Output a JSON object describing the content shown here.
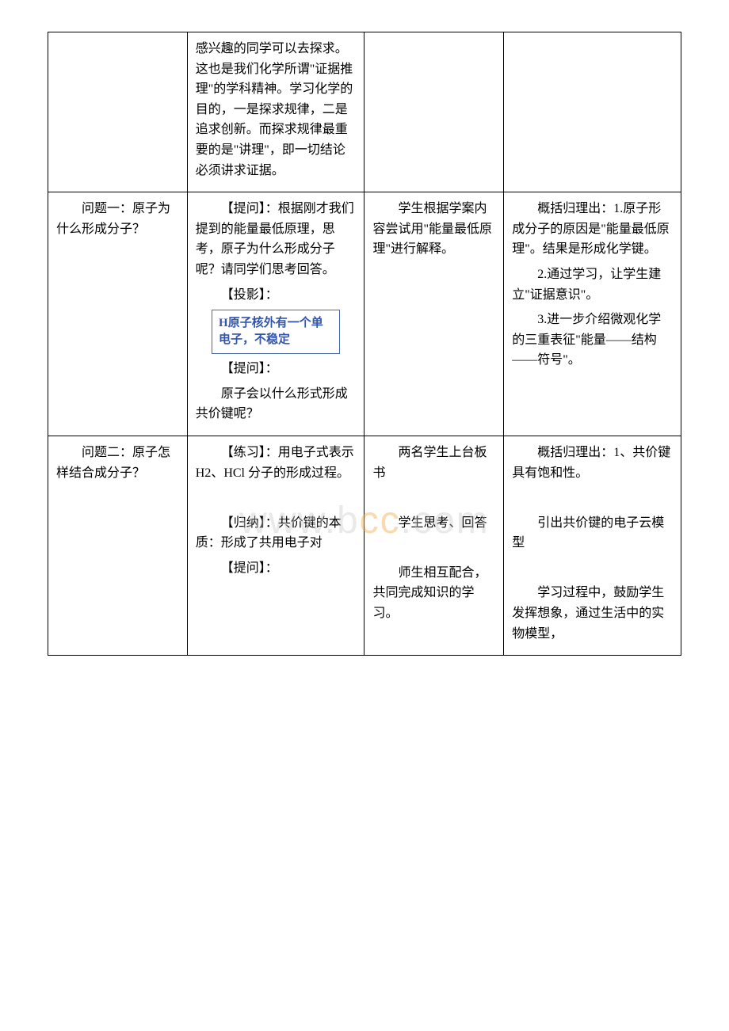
{
  "table": {
    "rows": [
      {
        "col1": "",
        "col2": [
          {
            "type": "p",
            "text": "感兴趣的同学可以去探求。这也是我们化学所谓\"证据推理\"的学科精神。学习化学的目的，一是探求规律，二是追求创新。而探求规律最重要的是\"讲理\"，即一切结论必须讲求证据。",
            "indent": false
          }
        ],
        "col3": "",
        "col4": ""
      },
      {
        "col1": [
          {
            "type": "p",
            "text": "问题一：原子为什么形成分子？",
            "indent": true
          }
        ],
        "col2": [
          {
            "type": "p",
            "text": "【提问】：根据刚才我们提到的能量最低原理，思考，原子为什么形成分子呢？请同学们思考回答。",
            "indent": true
          },
          {
            "type": "p",
            "text": "【投影】：",
            "indent": true
          },
          {
            "type": "box",
            "text": "H原子核外有一个单电子，不稳定"
          },
          {
            "type": "p",
            "text": "【提问】：",
            "indent": true
          },
          {
            "type": "p",
            "text": "原子会以什么形式形成共价键呢？",
            "indent": true
          }
        ],
        "col3": [
          {
            "type": "p",
            "text": "学生根据学案内容尝试用\"能量最低原理\"进行解释。",
            "indent": true
          }
        ],
        "col4": [
          {
            "type": "p",
            "text": "概括归理出：1.原子形成分子的原因是\"能量最低原理\"。结果是形成化学键。",
            "indent": true
          },
          {
            "type": "p",
            "text": "2.通过学习，让学生建立\"证据意识\"。",
            "indent": true
          },
          {
            "type": "p",
            "text": "3.进一步介绍微观化学的三重表征\"能量——结构——符号\"。",
            "indent": true
          }
        ]
      },
      {
        "col1": [
          {
            "type": "p",
            "text": "问题二：原子怎样结合成分子？",
            "indent": true
          }
        ],
        "col2": [
          {
            "type": "p",
            "text": "【练习】：用电子式表示H2、HCl 分子的形成过程。",
            "indent": true
          },
          {
            "type": "p",
            "text": "",
            "indent": false
          },
          {
            "type": "p",
            "text": "【归纳】：共价键的本质：形成了共用电子对",
            "indent": true
          },
          {
            "type": "p",
            "text": "【提问】：",
            "indent": true
          }
        ],
        "col3": [
          {
            "type": "p",
            "text": "两名学生上台板书",
            "indent": true
          },
          {
            "type": "p",
            "text": "",
            "indent": false
          },
          {
            "type": "p",
            "text": "学生思考、回答",
            "indent": true
          },
          {
            "type": "p",
            "text": "",
            "indent": false
          },
          {
            "type": "p",
            "text": "师生相互配合，共同完成知识的学习。",
            "indent": true
          }
        ],
        "col4": [
          {
            "type": "p",
            "text": "概括归理出：1、共价键具有饱和性。",
            "indent": true
          },
          {
            "type": "p",
            "text": "",
            "indent": false
          },
          {
            "type": "p",
            "text": "引出共价键的电子云模型",
            "indent": true
          },
          {
            "type": "p",
            "text": "",
            "indent": false
          },
          {
            "type": "p",
            "text": "学习过程中，鼓励学生发挥想象，通过生活中的实物模型，",
            "indent": true
          }
        ]
      }
    ]
  },
  "watermark": {
    "pre": "www.b",
    "orange": "cc",
    "post": ".com"
  }
}
